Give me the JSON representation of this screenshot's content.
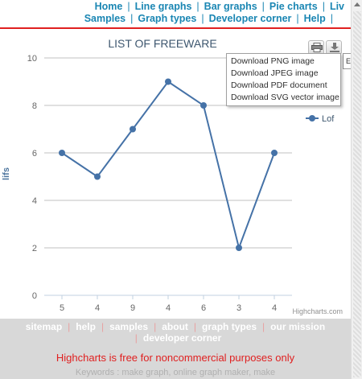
{
  "nav": {
    "row1": [
      "Home",
      "Line graphs",
      "Bar graphs",
      "Pie charts",
      "Liv"
    ],
    "row2": [
      "Samples",
      "Graph types",
      "Developer corner",
      "Help"
    ],
    "separator": "|"
  },
  "export": {
    "tooltip": "Ex",
    "menu": [
      "Download PNG image",
      "Download JPEG image",
      "Download PDF document",
      "Download SVG vector image"
    ]
  },
  "credits": "Highcharts.com",
  "chart_data": {
    "type": "line",
    "title": "LIST OF FREEWARE",
    "ylabel": "lifs",
    "categories": [
      "5",
      "4",
      "9",
      "4",
      "6",
      "3",
      "4"
    ],
    "series": [
      {
        "name": "Lof",
        "values": [
          6,
          5,
          7,
          9,
          8,
          2,
          6
        ],
        "color": "#4572a7"
      }
    ],
    "ylim": [
      0,
      10
    ],
    "yticks": [
      0,
      2,
      4,
      6,
      8,
      10
    ],
    "grid": true,
    "legend": "right"
  },
  "footer": {
    "row1": [
      "sitemap",
      "help",
      "samples",
      "about",
      "graph types",
      "our mission"
    ],
    "row2": [
      "developer corner"
    ],
    "notice": "Highcharts is free for noncommercial purposes only",
    "keywords": "Keywords : make graph, online graph maker, make"
  }
}
